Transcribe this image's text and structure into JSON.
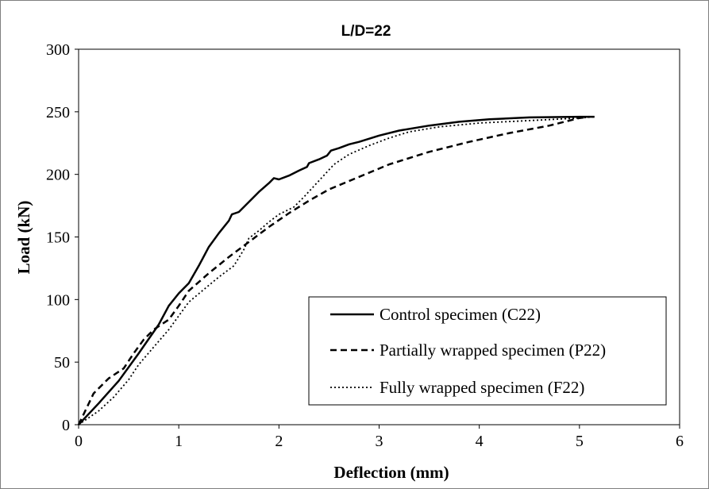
{
  "chart_data": {
    "type": "line",
    "title": "L/D=22",
    "xlabel": "Deflection  (mm)",
    "ylabel": "Load (kN)",
    "xlim": [
      0,
      6
    ],
    "ylim": [
      0,
      300
    ],
    "xticks": [
      0,
      1,
      2,
      3,
      4,
      5,
      6
    ],
    "yticks": [
      0,
      50,
      100,
      150,
      200,
      250,
      300
    ],
    "grid": false,
    "legend_position": "bottom-right",
    "series": [
      {
        "name": "Control specimen (C22)",
        "style": "solid",
        "color": "#000000",
        "points": [
          [
            0,
            0
          ],
          [
            0.2,
            17
          ],
          [
            0.4,
            35
          ],
          [
            0.6,
            57
          ],
          [
            0.8,
            80
          ],
          [
            0.9,
            95
          ],
          [
            1.0,
            105
          ],
          [
            1.1,
            113
          ],
          [
            1.2,
            127
          ],
          [
            1.3,
            142
          ],
          [
            1.4,
            153
          ],
          [
            1.5,
            163
          ],
          [
            1.53,
            168
          ],
          [
            1.6,
            170
          ],
          [
            1.7,
            178
          ],
          [
            1.8,
            186
          ],
          [
            1.9,
            193
          ],
          [
            1.95,
            197
          ],
          [
            2.0,
            196
          ],
          [
            2.1,
            199
          ],
          [
            2.2,
            203
          ],
          [
            2.28,
            206
          ],
          [
            2.3,
            209
          ],
          [
            2.4,
            212
          ],
          [
            2.48,
            215
          ],
          [
            2.52,
            219
          ],
          [
            2.6,
            221
          ],
          [
            2.7,
            224
          ],
          [
            2.8,
            226
          ],
          [
            3.0,
            231
          ],
          [
            3.2,
            235
          ],
          [
            3.5,
            239
          ],
          [
            3.8,
            242
          ],
          [
            4.1,
            244
          ],
          [
            4.5,
            245.5
          ],
          [
            5.0,
            246
          ],
          [
            5.15,
            246
          ]
        ]
      },
      {
        "name": "Partially wrapped specimen (P22)",
        "style": "dashed",
        "color": "#000000",
        "points": [
          [
            0,
            0
          ],
          [
            0.15,
            25
          ],
          [
            0.3,
            37
          ],
          [
            0.45,
            45
          ],
          [
            0.55,
            57
          ],
          [
            0.65,
            68
          ],
          [
            0.75,
            76
          ],
          [
            0.9,
            84
          ],
          [
            1.0,
            95
          ],
          [
            1.1,
            107
          ],
          [
            1.3,
            121
          ],
          [
            1.5,
            134
          ],
          [
            1.7,
            146
          ],
          [
            1.9,
            158
          ],
          [
            2.1,
            169
          ],
          [
            2.3,
            179
          ],
          [
            2.5,
            188
          ],
          [
            2.8,
            198
          ],
          [
            3.1,
            208
          ],
          [
            3.5,
            218
          ],
          [
            3.9,
            226
          ],
          [
            4.3,
            233
          ],
          [
            4.7,
            239
          ],
          [
            5.0,
            245
          ],
          [
            5.1,
            246
          ]
        ]
      },
      {
        "name": "Fully wrapped specimen (F22)",
        "style": "dotted",
        "color": "#000000",
        "points": [
          [
            0,
            0
          ],
          [
            0.2,
            11
          ],
          [
            0.35,
            22
          ],
          [
            0.5,
            36
          ],
          [
            0.6,
            48
          ],
          [
            0.75,
            62
          ],
          [
            0.9,
            76
          ],
          [
            1.0,
            87
          ],
          [
            1.1,
            98
          ],
          [
            1.25,
            108
          ],
          [
            1.4,
            118
          ],
          [
            1.55,
            127
          ],
          [
            1.65,
            140
          ],
          [
            1.7,
            149
          ],
          [
            1.8,
            155
          ],
          [
            1.9,
            162
          ],
          [
            2.0,
            168
          ],
          [
            2.15,
            174
          ],
          [
            2.25,
            182
          ],
          [
            2.4,
            195
          ],
          [
            2.55,
            208
          ],
          [
            2.7,
            216
          ],
          [
            2.9,
            223
          ],
          [
            3.1,
            229
          ],
          [
            3.3,
            234
          ],
          [
            3.6,
            238
          ],
          [
            4.0,
            241
          ],
          [
            4.5,
            243
          ],
          [
            5.0,
            245
          ],
          [
            5.15,
            246
          ]
        ]
      }
    ]
  }
}
